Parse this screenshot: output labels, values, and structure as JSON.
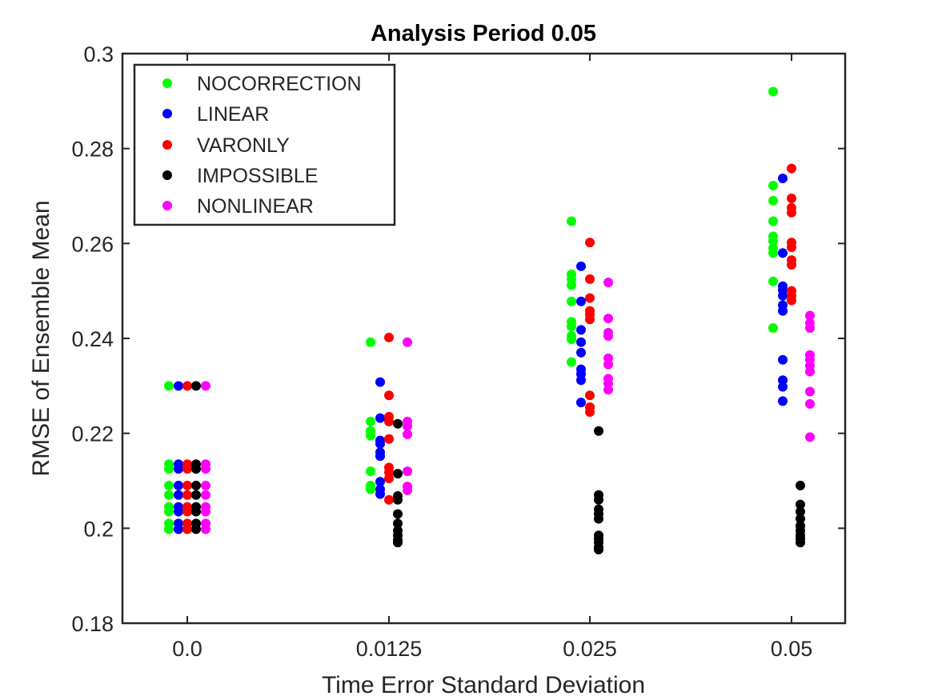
{
  "chart_data": {
    "type": "scatter",
    "title": "Analysis Period 0.05",
    "xlabel": "Time Error Standard Deviation",
    "ylabel": "RMSE of Ensemble Mean",
    "categories": [
      "0.0",
      "0.0125",
      "0.025",
      "0.05"
    ],
    "ylim": [
      0.18,
      0.3
    ],
    "yticks": [
      "0.18",
      "0.2",
      "0.22",
      "0.24",
      "0.26",
      "0.28",
      "0.3"
    ],
    "grid": false,
    "legend_position": "top-left",
    "series": [
      {
        "name": "NOCORRECTION",
        "color": "#00ff00",
        "points": [
          [
            0,
            0.23
          ],
          [
            0,
            0.2135
          ],
          [
            0,
            0.2125
          ],
          [
            0,
            0.209
          ],
          [
            0,
            0.207
          ],
          [
            0,
            0.2045
          ],
          [
            0,
            0.2035
          ],
          [
            0,
            0.201
          ],
          [
            0,
            0.1998
          ],
          [
            1,
            0.2392
          ],
          [
            1,
            0.2225
          ],
          [
            1,
            0.2205
          ],
          [
            1,
            0.2195
          ],
          [
            1,
            0.212
          ],
          [
            1,
            0.209
          ],
          [
            1,
            0.2082
          ],
          [
            2,
            0.2647
          ],
          [
            2,
            0.2535
          ],
          [
            2,
            0.2525
          ],
          [
            2,
            0.2512
          ],
          [
            2,
            0.2478
          ],
          [
            2,
            0.2435
          ],
          [
            2,
            0.2425
          ],
          [
            2,
            0.2405
          ],
          [
            2,
            0.2398
          ],
          [
            2,
            0.235
          ],
          [
            3,
            0.292
          ],
          [
            3,
            0.2722
          ],
          [
            3,
            0.269
          ],
          [
            3,
            0.2647
          ],
          [
            3,
            0.2615
          ],
          [
            3,
            0.2605
          ],
          [
            3,
            0.259
          ],
          [
            3,
            0.258
          ],
          [
            3,
            0.252
          ],
          [
            3,
            0.2422
          ]
        ]
      },
      {
        "name": "LINEAR",
        "color": "#0000ff",
        "points": [
          [
            0,
            0.23
          ],
          [
            0,
            0.2135
          ],
          [
            0,
            0.2125
          ],
          [
            0,
            0.209
          ],
          [
            0,
            0.207
          ],
          [
            0,
            0.2045
          ],
          [
            0,
            0.2035
          ],
          [
            0,
            0.201
          ],
          [
            0,
            0.1998
          ],
          [
            1,
            0.2308
          ],
          [
            1,
            0.2232
          ],
          [
            1,
            0.2185
          ],
          [
            1,
            0.2178
          ],
          [
            1,
            0.216
          ],
          [
            1,
            0.2152
          ],
          [
            1,
            0.2098
          ],
          [
            1,
            0.2082
          ],
          [
            1,
            0.2072
          ],
          [
            2,
            0.2552
          ],
          [
            2,
            0.2478
          ],
          [
            2,
            0.2418
          ],
          [
            2,
            0.2392
          ],
          [
            2,
            0.237
          ],
          [
            2,
            0.2335
          ],
          [
            2,
            0.2325
          ],
          [
            2,
            0.2312
          ],
          [
            2,
            0.2265
          ],
          [
            3,
            0.2737
          ],
          [
            3,
            0.258
          ],
          [
            3,
            0.251
          ],
          [
            3,
            0.2502
          ],
          [
            3,
            0.249
          ],
          [
            3,
            0.247
          ],
          [
            3,
            0.2458
          ],
          [
            3,
            0.2355
          ],
          [
            3,
            0.2312
          ],
          [
            3,
            0.2298
          ],
          [
            3,
            0.2268
          ]
        ]
      },
      {
        "name": "VARONLY",
        "color": "#ff0000",
        "points": [
          [
            0,
            0.23
          ],
          [
            0,
            0.2135
          ],
          [
            0,
            0.2125
          ],
          [
            0,
            0.209
          ],
          [
            0,
            0.207
          ],
          [
            0,
            0.2045
          ],
          [
            0,
            0.2035
          ],
          [
            0,
            0.201
          ],
          [
            0,
            0.1998
          ],
          [
            1,
            0.2402
          ],
          [
            1,
            0.228
          ],
          [
            1,
            0.2235
          ],
          [
            1,
            0.2225
          ],
          [
            1,
            0.2188
          ],
          [
            1,
            0.2128
          ],
          [
            1,
            0.2118
          ],
          [
            1,
            0.2105
          ],
          [
            1,
            0.206
          ],
          [
            2,
            0.2602
          ],
          [
            2,
            0.2525
          ],
          [
            2,
            0.2485
          ],
          [
            2,
            0.2458
          ],
          [
            2,
            0.245
          ],
          [
            2,
            0.244
          ],
          [
            2,
            0.228
          ],
          [
            2,
            0.2255
          ],
          [
            2,
            0.2245
          ],
          [
            3,
            0.2758
          ],
          [
            3,
            0.2695
          ],
          [
            3,
            0.2675
          ],
          [
            3,
            0.2665
          ],
          [
            3,
            0.2602
          ],
          [
            3,
            0.2592
          ],
          [
            3,
            0.2565
          ],
          [
            3,
            0.2555
          ],
          [
            3,
            0.25
          ],
          [
            3,
            0.249
          ],
          [
            3,
            0.248
          ]
        ]
      },
      {
        "name": "IMPOSSIBLE",
        "color": "#000000",
        "points": [
          [
            0,
            0.23
          ],
          [
            0,
            0.2135
          ],
          [
            0,
            0.2125
          ],
          [
            0,
            0.209
          ],
          [
            0,
            0.207
          ],
          [
            0,
            0.2045
          ],
          [
            0,
            0.2035
          ],
          [
            0,
            0.201
          ],
          [
            0,
            0.1998
          ],
          [
            1,
            0.222
          ],
          [
            1,
            0.2115
          ],
          [
            1,
            0.2068
          ],
          [
            1,
            0.206
          ],
          [
            1,
            0.203
          ],
          [
            1,
            0.201
          ],
          [
            1,
            0.1995
          ],
          [
            1,
            0.1985
          ],
          [
            1,
            0.1975
          ],
          [
            1,
            0.197
          ],
          [
            2,
            0.2205
          ],
          [
            2,
            0.207
          ],
          [
            2,
            0.206
          ],
          [
            2,
            0.204
          ],
          [
            2,
            0.203
          ],
          [
            2,
            0.202
          ],
          [
            2,
            0.1985
          ],
          [
            2,
            0.1978
          ],
          [
            2,
            0.197
          ],
          [
            2,
            0.196
          ],
          [
            2,
            0.1955
          ],
          [
            3,
            0.209
          ],
          [
            3,
            0.205
          ],
          [
            3,
            0.2035
          ],
          [
            3,
            0.202
          ],
          [
            3,
            0.2005
          ],
          [
            3,
            0.1995
          ],
          [
            3,
            0.1985
          ],
          [
            3,
            0.1978
          ],
          [
            3,
            0.197
          ]
        ]
      },
      {
        "name": "NONLINEAR",
        "color": "#ff00ff",
        "points": [
          [
            0,
            0.23
          ],
          [
            0,
            0.2135
          ],
          [
            0,
            0.2125
          ],
          [
            0,
            0.209
          ],
          [
            0,
            0.207
          ],
          [
            0,
            0.2045
          ],
          [
            0,
            0.2035
          ],
          [
            0,
            0.201
          ],
          [
            0,
            0.1998
          ],
          [
            1,
            0.2392
          ],
          [
            1,
            0.2225
          ],
          [
            1,
            0.2215
          ],
          [
            1,
            0.2198
          ],
          [
            1,
            0.212
          ],
          [
            1,
            0.2088
          ],
          [
            1,
            0.208
          ],
          [
            2,
            0.2518
          ],
          [
            2,
            0.2442
          ],
          [
            2,
            0.2412
          ],
          [
            2,
            0.2405
          ],
          [
            2,
            0.2358
          ],
          [
            2,
            0.2345
          ],
          [
            2,
            0.2315
          ],
          [
            2,
            0.2305
          ],
          [
            2,
            0.2292
          ],
          [
            3,
            0.2448
          ],
          [
            3,
            0.2432
          ],
          [
            3,
            0.2422
          ],
          [
            3,
            0.2365
          ],
          [
            3,
            0.2355
          ],
          [
            3,
            0.2342
          ],
          [
            3,
            0.233
          ],
          [
            3,
            0.2288
          ],
          [
            3,
            0.2262
          ],
          [
            3,
            0.2192
          ]
        ]
      }
    ]
  }
}
